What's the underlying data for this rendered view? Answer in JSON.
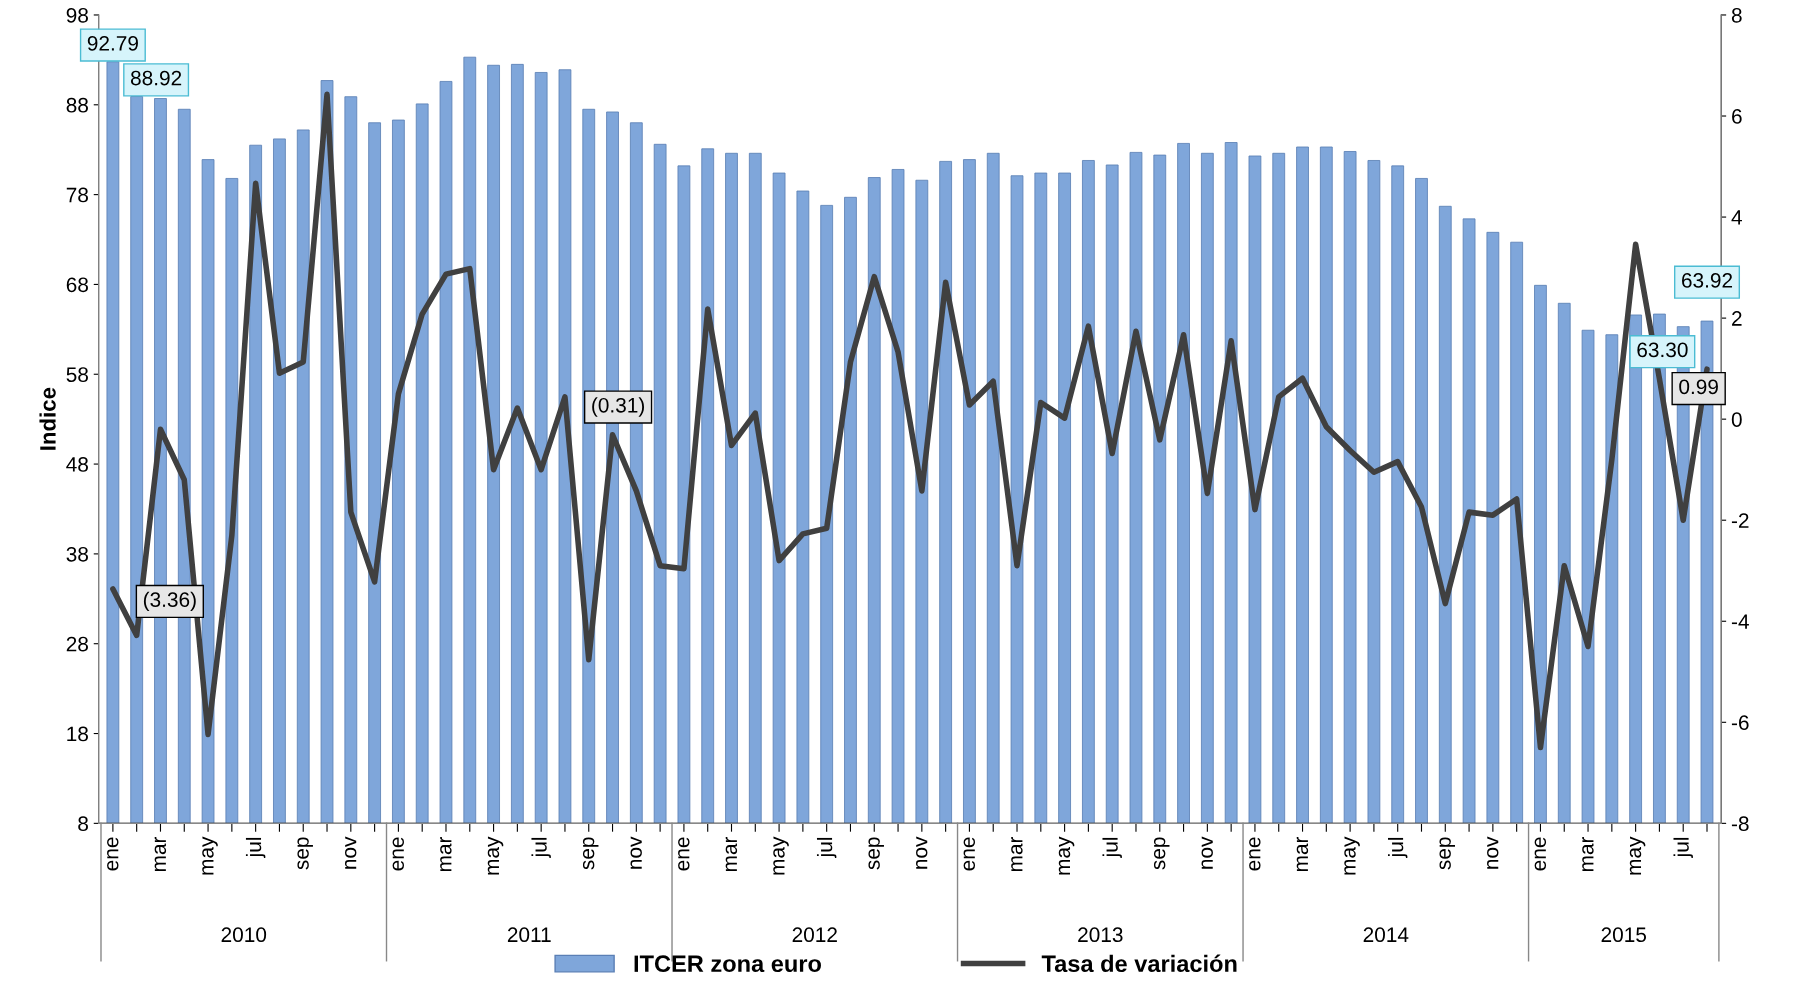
{
  "chart_data": {
    "type": "bar",
    "ylabel": "Indice",
    "categories": [
      "ene",
      null,
      "mar",
      null,
      "may",
      null,
      "jul",
      null,
      "sep",
      null,
      "nov",
      null,
      "ene",
      null,
      "mar",
      null,
      "may",
      null,
      "jul",
      null,
      "sep",
      null,
      "nov",
      null,
      "ene",
      null,
      "mar",
      null,
      "may",
      null,
      "jul",
      null,
      "sep",
      null,
      "nov",
      null,
      "ene",
      null,
      "mar",
      null,
      "may",
      null,
      "jul",
      null,
      "sep",
      null,
      "nov",
      null,
      "ene",
      null,
      "mar",
      null,
      "may",
      null,
      "jul",
      null,
      "sep",
      null,
      "nov",
      null,
      "ene",
      null,
      "mar",
      null,
      "may",
      null,
      "jul",
      null
    ],
    "series": [
      {
        "name": "ITCER zona euro",
        "color": "#7fa6da",
        "values": [
          92.79,
          88.92,
          88.7,
          87.5,
          81.9,
          79.8,
          83.5,
          84.2,
          85.2,
          90.7,
          88.9,
          86.0,
          86.3,
          88.1,
          90.6,
          93.3,
          92.4,
          92.5,
          91.6,
          91.9,
          87.5,
          87.2,
          86.0,
          83.6,
          81.2,
          83.1,
          82.6,
          82.6,
          80.4,
          78.4,
          76.8,
          77.7,
          79.9,
          80.8,
          79.6,
          81.7,
          81.9,
          82.6,
          80.1,
          80.4,
          80.4,
          81.8,
          81.3,
          82.7,
          82.4,
          83.7,
          82.6,
          83.8,
          82.3,
          82.6,
          83.3,
          83.3,
          82.8,
          81.8,
          81.2,
          79.8,
          76.7,
          75.3,
          73.8,
          72.7,
          67.9,
          65.9,
          62.9,
          62.4,
          64.6,
          64.7,
          63.3,
          63.92
        ],
        "value_labels": [
          "92.79",
          "88.92",
          null,
          null,
          null,
          null,
          null,
          null,
          null,
          null,
          null,
          null,
          null,
          null,
          null,
          null,
          null,
          null,
          null,
          null,
          null,
          null,
          null,
          null,
          null,
          null,
          null,
          null,
          null,
          null,
          null,
          null,
          null,
          null,
          null,
          null,
          null,
          null,
          null,
          null,
          null,
          null,
          null,
          null,
          null,
          null,
          null,
          null,
          null,
          null,
          null,
          null,
          null,
          null,
          null,
          null,
          null,
          null,
          null,
          null,
          null,
          null,
          null,
          null,
          null,
          null,
          "63.30",
          "63.92"
        ]
      },
      {
        "name": "Tasa de variación",
        "type": "line",
        "axis": "y2",
        "color": "#404040",
        "values": [
          -3.36,
          -4.28,
          -0.2,
          -1.2,
          -6.24,
          -2.3,
          4.67,
          0.91,
          1.13,
          6.43,
          -1.84,
          -3.22,
          0.5,
          2.08,
          2.87,
          2.98,
          -1.0,
          0.22,
          -1.0,
          0.44,
          -4.76,
          -0.31,
          -1.42,
          -2.9,
          -2.96,
          2.18,
          -0.52,
          0.12,
          -2.8,
          -2.27,
          -2.16,
          1.13,
          2.82,
          1.33,
          -1.42,
          2.71,
          0.28,
          0.75,
          -2.9,
          0.33,
          0.02,
          1.84,
          -0.68,
          1.74,
          -0.41,
          1.67,
          -1.47,
          1.55,
          -1.79,
          0.44,
          0.81,
          -0.15,
          -0.62,
          -1.05,
          -0.84,
          -1.74,
          -3.65,
          -1.84,
          -1.9,
          -1.58,
          -6.5,
          -2.9,
          -4.5,
          -0.8,
          3.46,
          0.8,
          -2.0,
          0.99
        ],
        "value_labels": [
          "(3.36)",
          null,
          null,
          null,
          null,
          null,
          null,
          null,
          null,
          null,
          null,
          null,
          null,
          null,
          null,
          null,
          null,
          null,
          null,
          null,
          null,
          "(0.31)",
          null,
          null,
          null,
          null,
          null,
          null,
          null,
          null,
          null,
          null,
          null,
          null,
          null,
          null,
          null,
          null,
          null,
          null,
          null,
          null,
          null,
          null,
          null,
          null,
          null,
          null,
          null,
          null,
          null,
          null,
          null,
          null,
          null,
          null,
          null,
          null,
          null,
          null,
          null,
          null,
          null,
          null,
          null,
          null,
          null,
          "0.99"
        ]
      }
    ],
    "annotations": [
      "2010",
      "2011",
      "2012",
      "2013",
      "2014",
      "2015"
    ],
    "ylim": [
      8,
      98
    ],
    "yticks": [
      8,
      18,
      28,
      38,
      48,
      58,
      68,
      78,
      88,
      98
    ],
    "y2lim": [
      -8,
      8
    ],
    "y2ticks": [
      -8,
      -6,
      -4,
      -2,
      0,
      2,
      4,
      6,
      8
    ],
    "grid": false,
    "legend": "bottom"
  }
}
